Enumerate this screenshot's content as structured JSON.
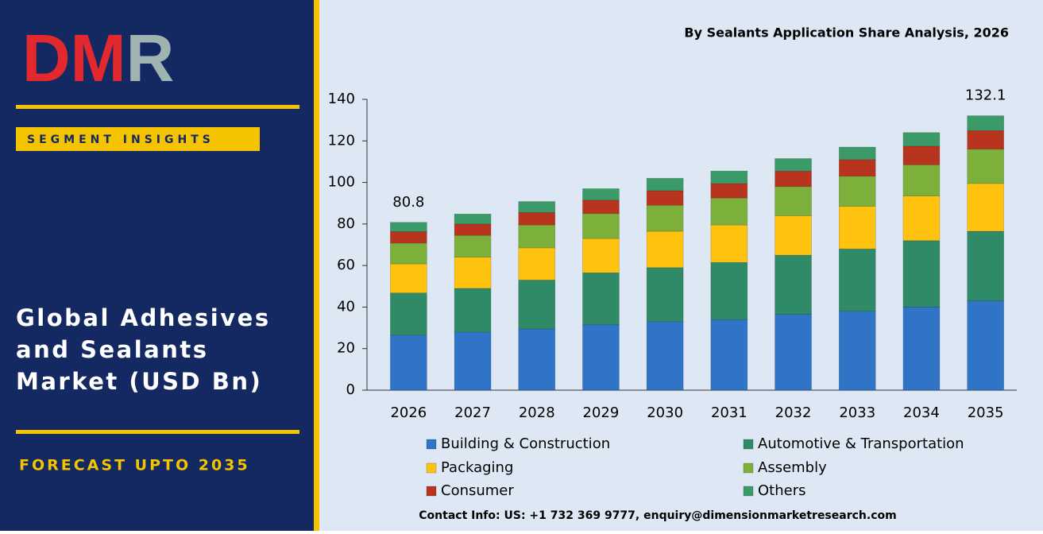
{
  "logo": {
    "parts": [
      "DM",
      "R"
    ]
  },
  "badge": "SEGMENT INSIGHTS",
  "headline": [
    "Global Adhesives",
    "and Sealants",
    "Market (USD Bn)"
  ],
  "forecast": "FORECAST UPTO 2035",
  "contact": "Contact Info: US: +1 732 369 9777, enquiry@dimensionmarketresearch.com",
  "chart_data": {
    "type": "stacked_bar",
    "title": "By Sealants Application Share Analysis, 2026",
    "categories": [
      "2026",
      "2027",
      "2028",
      "2029",
      "2030",
      "2031",
      "2032",
      "2033",
      "2034",
      "2035"
    ],
    "series": [
      {
        "name": "Building & Construction",
        "color": "#2f74c6",
        "values": [
          26.5,
          28,
          29.5,
          31.5,
          33,
          34,
          36.5,
          38,
          40,
          43
        ]
      },
      {
        "name": "Automotive & Transportation",
        "color": "#2f8a68",
        "values": [
          20.3,
          21,
          23.5,
          25,
          26,
          27.5,
          28.5,
          30,
          32,
          33.5
        ]
      },
      {
        "name": "Packaging",
        "color": "#ffc20e",
        "values": [
          14,
          15,
          15.5,
          16.5,
          17.5,
          18,
          19,
          20.5,
          21.5,
          23
        ]
      },
      {
        "name": "Assembly",
        "color": "#7db03a",
        "values": [
          10,
          10.5,
          11,
          12,
          12.5,
          13,
          14,
          14.5,
          15,
          16.5
        ]
      },
      {
        "name": "Consumer",
        "color": "#b8341f",
        "values": [
          5.5,
          5.5,
          6,
          6.5,
          7,
          7,
          7.5,
          8,
          9,
          9
        ]
      },
      {
        "name": "Others",
        "color": "#3b9b68",
        "values": [
          4.5,
          4.8,
          5.3,
          5.5,
          6,
          6,
          6,
          6,
          6.5,
          7.1
        ]
      }
    ],
    "total_labels": [
      {
        "category": "2026",
        "value": 80.8
      },
      {
        "category": "2035",
        "value": 132.1
      }
    ],
    "ylim": [
      0,
      140
    ],
    "yticks": [
      0,
      20,
      40,
      60,
      80,
      100,
      120,
      140
    ],
    "grid": false
  }
}
